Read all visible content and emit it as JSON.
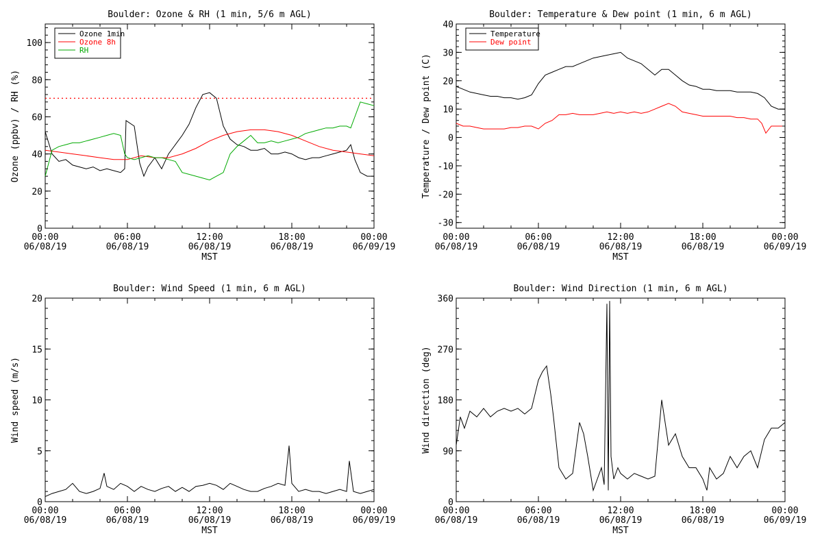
{
  "x_ticks": [
    {
      "time": "00:00",
      "date": "06/08/19"
    },
    {
      "time": "06:00",
      "date": "06/08/19"
    },
    {
      "time": "12:00",
      "date": "06/08/19"
    },
    {
      "time": "18:00",
      "date": "06/08/19"
    },
    {
      "time": "00:00",
      "date": "06/09/19"
    }
  ],
  "chart_data": [
    {
      "id": "ozone-rh",
      "type": "line",
      "title": "Boulder: Ozone & RH (1 min, 5/6 m AGL)",
      "xlabel": "MST",
      "ylabel": "Ozone (ppbv) / RH (%)",
      "x_unit": "hours since 06/08/19 00:00",
      "xlim": [
        0,
        24
      ],
      "ylim": [
        0,
        110
      ],
      "yticks": [
        0,
        20,
        40,
        60,
        80,
        100
      ],
      "grid": false,
      "legend": "top-left",
      "reference_lines": [
        {
          "y": 70,
          "color": "#ff0000",
          "style": "dotted"
        }
      ],
      "series": [
        {
          "name": "Ozone 1min",
          "color": "#000000",
          "x": [
            0,
            0.5,
            1,
            1.5,
            2,
            2.5,
            3,
            3.5,
            4,
            4.5,
            5,
            5.5,
            5.8,
            5.9,
            6.5,
            6.9,
            7.2,
            7.5,
            8,
            8.5,
            9,
            9.5,
            10,
            10.5,
            11,
            11.5,
            12,
            12.5,
            13,
            13.5,
            14,
            14.5,
            15,
            15.5,
            16,
            16.5,
            17,
            17.5,
            18,
            18.5,
            19,
            19.5,
            20,
            20.5,
            21,
            21.5,
            22,
            22.3,
            22.6,
            23,
            23.5,
            24
          ],
          "y": [
            52,
            40,
            36,
            37,
            34,
            33,
            32,
            33,
            31,
            32,
            31,
            30,
            32,
            58,
            55,
            35,
            28,
            33,
            38,
            32,
            40,
            45,
            50,
            56,
            65,
            72,
            73,
            70,
            55,
            48,
            45,
            44,
            42,
            42,
            43,
            40,
            40,
            41,
            40,
            38,
            37,
            38,
            38,
            39,
            40,
            41,
            42,
            45,
            37,
            30,
            28,
            28
          ]
        },
        {
          "name": "Ozone 8h",
          "color": "#ff0000",
          "x": [
            0,
            1,
            2,
            3,
            4,
            5,
            6,
            7,
            8,
            9,
            10,
            11,
            12,
            13,
            14,
            15,
            16,
            17,
            18,
            19,
            20,
            21,
            22,
            23,
            24
          ],
          "y": [
            42,
            41,
            40,
            39,
            38,
            37,
            37,
            39,
            38,
            38,
            40,
            43,
            47,
            50,
            52,
            53,
            53,
            52,
            50,
            47,
            44,
            42,
            41,
            40,
            39
          ]
        },
        {
          "name": "RH",
          "color": "#00aa00",
          "x": [
            0,
            0.5,
            1,
            1.5,
            2,
            2.5,
            3,
            3.5,
            4,
            4.5,
            5,
            5.5,
            5.8,
            6,
            6.5,
            7,
            7.5,
            8,
            8.5,
            9,
            9.5,
            10,
            10.5,
            11,
            11.5,
            12,
            12.5,
            13,
            13.5,
            14,
            14.5,
            15,
            15.5,
            16,
            16.5,
            17,
            17.5,
            18,
            18.5,
            19,
            19.5,
            20,
            20.5,
            21,
            21.5,
            22,
            22.3,
            22.6,
            23,
            23.5,
            24
          ],
          "y": [
            28,
            42,
            44,
            45,
            46,
            46,
            47,
            48,
            49,
            50,
            51,
            50,
            40,
            38,
            37,
            38,
            39,
            38,
            38,
            37,
            36,
            30,
            29,
            28,
            27,
            26,
            28,
            30,
            40,
            44,
            47,
            50,
            46,
            46,
            47,
            46,
            47,
            48,
            49,
            51,
            52,
            53,
            54,
            54,
            55,
            55,
            54,
            60,
            68,
            67,
            66
          ]
        }
      ]
    },
    {
      "id": "temp-dew",
      "type": "line",
      "title": "Boulder: Temperature & Dew point (1 min, 6 m AGL)",
      "xlabel": "MST",
      "ylabel": "Temperature / Dew point (C)",
      "x_unit": "hours since 06/08/19 00:00",
      "xlim": [
        0,
        24
      ],
      "ylim": [
        -32,
        40
      ],
      "yticks": [
        -30,
        -20,
        -10,
        0,
        10,
        20,
        30,
        40
      ],
      "grid": false,
      "legend": "top-left",
      "series": [
        {
          "name": "Temperature",
          "color": "#000000",
          "x": [
            0,
            0.5,
            1,
            1.5,
            2,
            2.5,
            3,
            3.5,
            4,
            4.5,
            5,
            5.5,
            6,
            6.5,
            7,
            7.5,
            8,
            8.5,
            9,
            9.5,
            10,
            10.5,
            11,
            11.5,
            12,
            12.5,
            13,
            13.5,
            14,
            14.5,
            15,
            15.5,
            16,
            16.5,
            17,
            17.5,
            18,
            18.5,
            19,
            19.5,
            20,
            20.5,
            21,
            21.5,
            22,
            22.5,
            23,
            23.5,
            24
          ],
          "y": [
            18,
            17,
            16,
            15.5,
            15,
            14.5,
            14.5,
            14,
            14,
            13.5,
            14,
            15,
            19,
            22,
            23,
            24,
            25,
            25,
            26,
            27,
            28,
            28.5,
            29,
            29.5,
            30,
            28,
            27,
            26,
            24,
            22,
            24,
            24,
            22,
            20,
            18.5,
            18,
            17,
            17,
            16.5,
            16.5,
            16.5,
            16,
            16,
            16,
            15.5,
            14,
            11,
            10,
            10
          ]
        },
        {
          "name": "Dew point",
          "color": "#ff0000",
          "x": [
            0,
            0.5,
            1,
            1.5,
            2,
            2.5,
            3,
            3.5,
            4,
            4.5,
            5,
            5.5,
            6,
            6.5,
            7,
            7.5,
            8,
            8.5,
            9,
            9.5,
            10,
            10.5,
            11,
            11.5,
            12,
            12.5,
            13,
            13.5,
            14,
            14.5,
            15,
            15.5,
            16,
            16.5,
            17,
            17.5,
            18,
            18.5,
            19,
            19.5,
            20,
            20.5,
            21,
            21.5,
            22,
            22.3,
            22.6,
            23,
            23.5,
            24
          ],
          "y": [
            5,
            4,
            4,
            3.5,
            3,
            3,
            3,
            3,
            3.5,
            3.5,
            4,
            4,
            3,
            5,
            6,
            8,
            8,
            8.5,
            8,
            8,
            8,
            8.5,
            9,
            8.5,
            9,
            8.5,
            9,
            8.5,
            9,
            10,
            11,
            12,
            11,
            9,
            8.5,
            8,
            7.5,
            7.5,
            7.5,
            7.5,
            7.5,
            7,
            7,
            6.5,
            6.5,
            5,
            1.5,
            4,
            4,
            4
          ]
        }
      ]
    },
    {
      "id": "wind-speed",
      "type": "line",
      "title": "Boulder: Wind Speed (1 min, 6 m AGL)",
      "xlabel": "MST",
      "ylabel": "Wind speed (m/s)",
      "x_unit": "hours since 06/08/19 00:00",
      "xlim": [
        0,
        24
      ],
      "ylim": [
        0,
        20
      ],
      "yticks": [
        0,
        5,
        10,
        15,
        20
      ],
      "grid": false,
      "legend": "none",
      "series": [
        {
          "name": "",
          "color": "#000000",
          "x": [
            0,
            0.5,
            1,
            1.5,
            2,
            2.5,
            3,
            3.5,
            4,
            4.3,
            4.5,
            5,
            5.5,
            6,
            6.5,
            7,
            7.5,
            8,
            8.5,
            9,
            9.5,
            10,
            10.5,
            11,
            11.5,
            12,
            12.5,
            13,
            13.5,
            14,
            14.5,
            15,
            15.5,
            16,
            16.5,
            17,
            17.5,
            17.8,
            18,
            18.5,
            19,
            19.5,
            20,
            20.5,
            21,
            21.5,
            22,
            22.2,
            22.5,
            23,
            23.5,
            24
          ],
          "y": [
            0.5,
            0.8,
            1.0,
            1.2,
            1.8,
            1.0,
            0.8,
            1.0,
            1.3,
            2.8,
            1.5,
            1.2,
            1.8,
            1.5,
            1.0,
            1.5,
            1.2,
            1.0,
            1.3,
            1.5,
            1.0,
            1.4,
            1.0,
            1.5,
            1.6,
            1.8,
            1.6,
            1.2,
            1.8,
            1.5,
            1.2,
            1.0,
            1.0,
            1.3,
            1.5,
            1.8,
            1.6,
            5.5,
            1.8,
            1.0,
            1.2,
            1.0,
            1.0,
            0.8,
            1.0,
            1.2,
            1.0,
            4.0,
            1.0,
            0.8,
            1.0,
            1.2
          ]
        }
      ]
    },
    {
      "id": "wind-direction",
      "type": "line",
      "title": "Boulder: Wind Direction (1 min, 6 m AGL)",
      "xlabel": "MST",
      "ylabel": "Wind direction (deg)",
      "x_unit": "hours since 06/08/19 00:00",
      "xlim": [
        0,
        24
      ],
      "ylim": [
        0,
        360
      ],
      "yticks": [
        0,
        90,
        180,
        270,
        360
      ],
      "grid": false,
      "legend": "none",
      "series": [
        {
          "name": "",
          "color": "#000000",
          "x": [
            0,
            0.3,
            0.6,
            1,
            1.5,
            2,
            2.5,
            3,
            3.5,
            4,
            4.5,
            5,
            5.5,
            5.8,
            6,
            6.3,
            6.6,
            6.9,
            7.1,
            7.5,
            8,
            8.5,
            9,
            9.3,
            9.6,
            10,
            10.3,
            10.6,
            10.8,
            11,
            11.1,
            11.2,
            11.3,
            11.5,
            11.8,
            12,
            12.5,
            13,
            13.5,
            14,
            14.5,
            15,
            15.5,
            16,
            16.5,
            17,
            17.5,
            18,
            18.3,
            18.5,
            19,
            19.5,
            20,
            20.5,
            21,
            21.5,
            22,
            22.5,
            23,
            23.5,
            24
          ],
          "y": [
            100,
            150,
            130,
            160,
            150,
            165,
            150,
            160,
            165,
            160,
            165,
            155,
            165,
            195,
            215,
            230,
            240,
            190,
            150,
            60,
            40,
            50,
            140,
            120,
            80,
            20,
            40,
            60,
            30,
            350,
            20,
            355,
            80,
            40,
            60,
            50,
            40,
            50,
            45,
            40,
            45,
            180,
            100,
            120,
            80,
            60,
            60,
            40,
            20,
            60,
            40,
            50,
            80,
            60,
            80,
            90,
            60,
            110,
            130,
            130,
            140
          ]
        }
      ]
    }
  ]
}
